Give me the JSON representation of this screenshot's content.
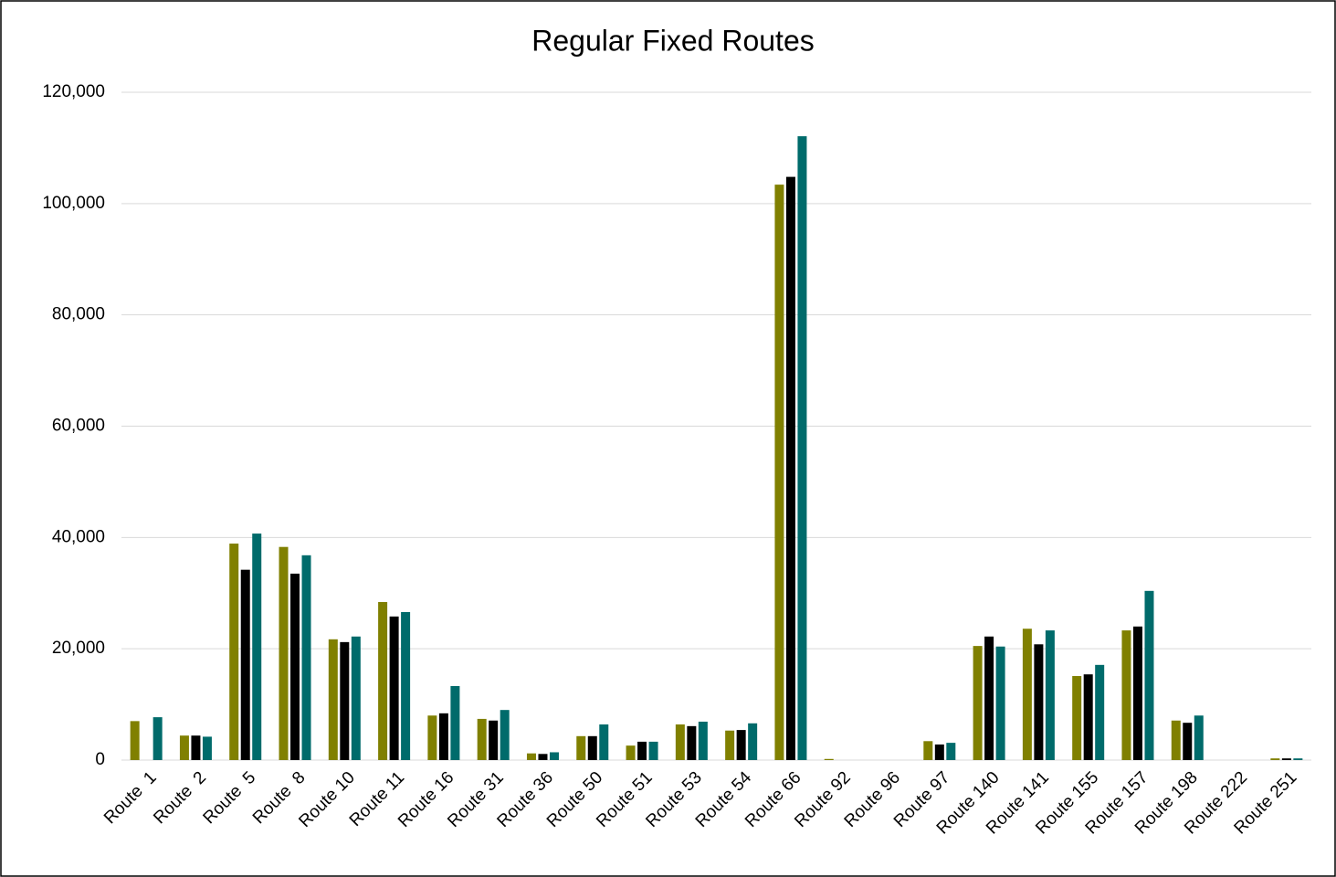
{
  "chart_data": {
    "type": "bar",
    "title": "Regular Fixed Routes",
    "categories": [
      "Route  1",
      "Route  2",
      "Route  5",
      "Route  8",
      "Route 10",
      "Route 11",
      "Route 16",
      "Route 31",
      "Route 36",
      "Route 50",
      "Route 51",
      "Route 53",
      "Route 54",
      "Route 66",
      "Route 92",
      "Route 96",
      "Route 97",
      "Route 140",
      "Route 141",
      "Route 155",
      "Route 157",
      "Route 198",
      "Route 222",
      "Route 251"
    ],
    "series": [
      {
        "color": "#808000",
        "values": [
          7000,
          4400,
          38900,
          38300,
          21700,
          28400,
          8000,
          7400,
          1200,
          4300,
          2600,
          6400,
          5300,
          103400,
          200,
          0,
          3400,
          20500,
          23600,
          15100,
          23300,
          7100,
          0,
          300
        ]
      },
      {
        "color": "#000000",
        "values": [
          0,
          4400,
          34200,
          33500,
          21200,
          25800,
          8400,
          7100,
          1100,
          4300,
          3300,
          6100,
          5400,
          104800,
          0,
          0,
          2800,
          22200,
          20800,
          15400,
          24000,
          6700,
          0,
          300
        ]
      },
      {
        "color": "#006b6b",
        "values": [
          7700,
          4200,
          40700,
          36800,
          22200,
          26600,
          13300,
          9000,
          1400,
          6400,
          3300,
          6900,
          6600,
          112100,
          0,
          0,
          3100,
          20400,
          23300,
          17100,
          30400,
          8000,
          0,
          300
        ]
      }
    ],
    "ylim": [
      0,
      120000
    ],
    "yticks": [
      0,
      {
        "value": 20000,
        "label": "20,000"
      },
      {
        "value": 40000,
        "label": "40,000"
      },
      {
        "value": 60000,
        "label": "60,000"
      },
      {
        "value": 80000,
        "label": "80,000"
      },
      {
        "value": 100000,
        "label": "100,000"
      },
      {
        "value": 120000,
        "label": "120,000"
      }
    ],
    "grid": true
  }
}
